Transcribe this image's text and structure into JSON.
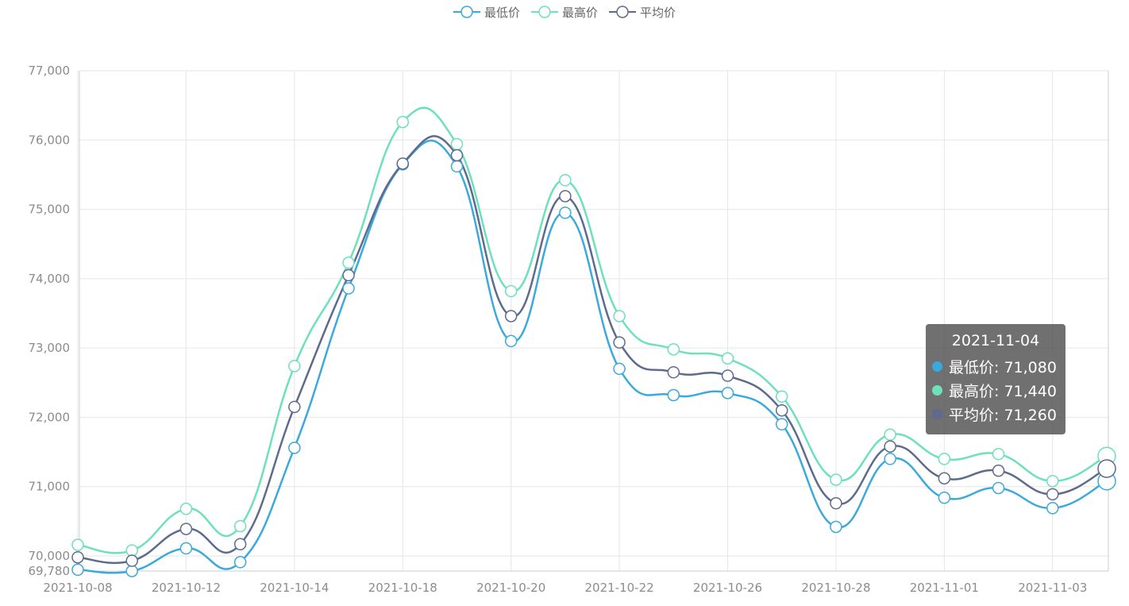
{
  "colors": {
    "series": [
      "#3ba9dc",
      "#6de0bc",
      "#5e6a8e"
    ],
    "grid": "#e6e6e6",
    "axis": "#cccccc",
    "tick": "#8c8c8c"
  },
  "legend": {
    "items": [
      {
        "label": "最低价",
        "color": "#3ba9dc"
      },
      {
        "label": "最高价",
        "color": "#6de0bc"
      },
      {
        "label": "平均价",
        "color": "#5e6a8e"
      }
    ]
  },
  "chart_data": {
    "type": "line",
    "x": [
      "2021-10-08",
      "2021-10-11",
      "2021-10-12",
      "2021-10-13",
      "2021-10-14",
      "2021-10-15",
      "2021-10-18",
      "2021-10-19",
      "2021-10-20",
      "2021-10-21",
      "2021-10-22",
      "2021-10-25",
      "2021-10-26",
      "2021-10-27",
      "2021-10-28",
      "2021-10-29",
      "2021-11-01",
      "2021-11-02",
      "2021-11-03",
      "2021-11-04"
    ],
    "xtick_labels": [
      "2021-10-08",
      "2021-10-12",
      "2021-10-14",
      "2021-10-18",
      "2021-10-20",
      "2021-10-22",
      "2021-10-26",
      "2021-10-28",
      "2021-11-01",
      "2021-11-03"
    ],
    "series": [
      {
        "name": "最低价",
        "values": [
          69800,
          69780,
          70110,
          69910,
          71560,
          73860,
          75650,
          75620,
          73100,
          74950,
          72700,
          72320,
          72350,
          71900,
          70420,
          71400,
          70840,
          70980,
          70690,
          71080
        ]
      },
      {
        "name": "最高价",
        "values": [
          70160,
          70080,
          70680,
          70430,
          72740,
          74230,
          76260,
          75940,
          73820,
          75420,
          73460,
          72980,
          72850,
          72300,
          71100,
          71750,
          71400,
          71470,
          71080,
          71440
        ]
      },
      {
        "name": "平均价",
        "values": [
          69980,
          69930,
          70390,
          70170,
          72150,
          74050,
          75660,
          75780,
          73460,
          75190,
          73080,
          72650,
          72600,
          72100,
          70760,
          71580,
          71120,
          71230,
          70890,
          71260
        ]
      }
    ],
    "ylim": [
      69780,
      77000
    ],
    "yticks": [
      {
        "value": 77000,
        "label": "77,000"
      },
      {
        "value": 76000,
        "label": "76,000"
      },
      {
        "value": 75000,
        "label": "75,000"
      },
      {
        "value": 74000,
        "label": "74,000"
      },
      {
        "value": 73000,
        "label": "73,000"
      },
      {
        "value": 72000,
        "label": "72,000"
      },
      {
        "value": 71000,
        "label": "71,000"
      },
      {
        "value": 70000,
        "label": "70,000"
      },
      {
        "value": 69780,
        "label": "69,780"
      }
    ],
    "grid": true,
    "legend_position": "top-center",
    "smooth": true
  },
  "tooltip": {
    "title": "2021-11-04",
    "rows": [
      {
        "label": "最低价: 71,080",
        "color": "#3ba9dc"
      },
      {
        "label": "最高价: 71,440",
        "color": "#6de0bc"
      },
      {
        "label": "平均价: 71,260",
        "color": "#5e6a8e"
      }
    ]
  }
}
